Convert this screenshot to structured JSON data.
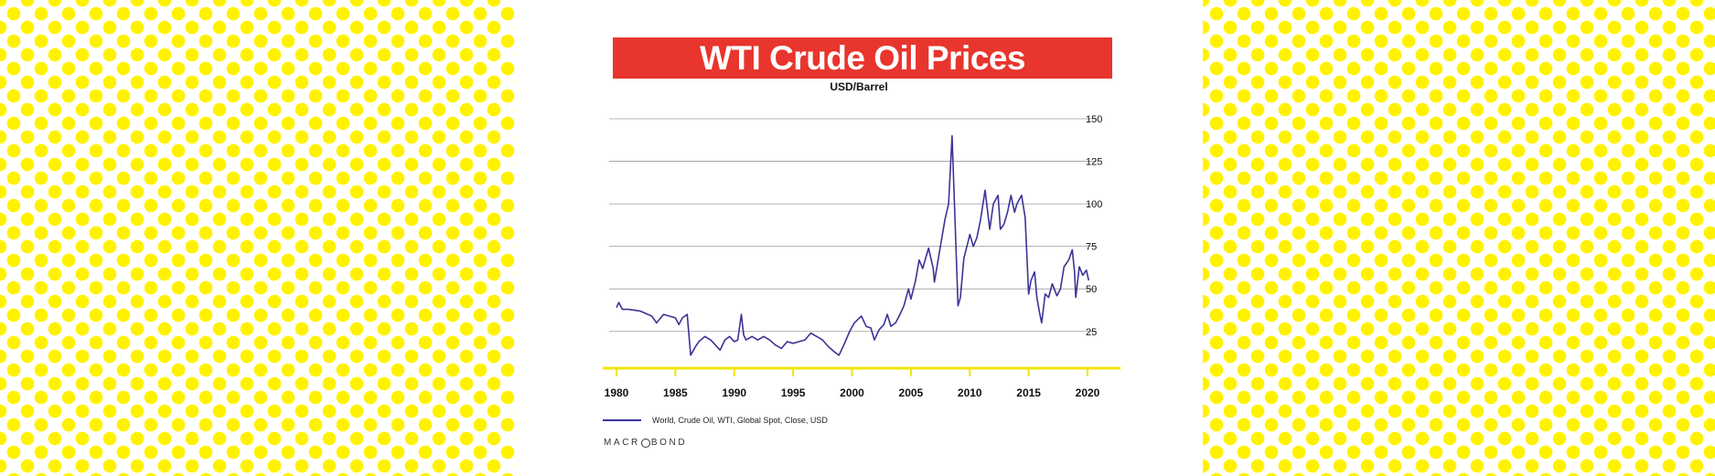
{
  "colors": {
    "dots": "#fff200",
    "banner": "#e8352d",
    "series": "#3b3497",
    "baseline": "#f2e600",
    "grid": "#9a9a9a"
  },
  "chart_data": {
    "type": "line",
    "title": "WTI Crude Oil Prices",
    "subtitle": "USD/Barrel",
    "xlim": [
      1980,
      2020
    ],
    "ylim": [
      5,
      150
    ],
    "x_ticks": [
      "1980",
      "1985",
      "1990",
      "1995",
      "2000",
      "2005",
      "2010",
      "2015",
      "2020"
    ],
    "y_ticks": [
      "25",
      "50",
      "75",
      "100",
      "125",
      "150"
    ],
    "y_axis_side": "right",
    "grid": true,
    "legend_position": "bottom-left",
    "series": [
      {
        "name": "World, Crude Oil, WTI, Global Spot, Close, USD",
        "points": [
          [
            1980.0,
            39
          ],
          [
            1980.2,
            42
          ],
          [
            1980.5,
            38
          ],
          [
            1981.0,
            38
          ],
          [
            1982.0,
            37
          ],
          [
            1983.0,
            34
          ],
          [
            1983.4,
            30
          ],
          [
            1984.0,
            35
          ],
          [
            1985.0,
            33
          ],
          [
            1985.3,
            29
          ],
          [
            1985.6,
            33
          ],
          [
            1986.0,
            35
          ],
          [
            1986.3,
            11
          ],
          [
            1986.7,
            16
          ],
          [
            1987.0,
            19
          ],
          [
            1987.5,
            22
          ],
          [
            1988.0,
            20
          ],
          [
            1988.4,
            17
          ],
          [
            1988.8,
            14
          ],
          [
            1989.2,
            20
          ],
          [
            1989.6,
            22
          ],
          [
            1990.0,
            19
          ],
          [
            1990.3,
            20
          ],
          [
            1990.6,
            35
          ],
          [
            1990.8,
            23
          ],
          [
            1991.0,
            20
          ],
          [
            1991.5,
            22
          ],
          [
            1992.0,
            20
          ],
          [
            1992.5,
            22
          ],
          [
            1993.0,
            20
          ],
          [
            1993.5,
            17
          ],
          [
            1994.0,
            15
          ],
          [
            1994.5,
            19
          ],
          [
            1995.0,
            18
          ],
          [
            1995.5,
            19
          ],
          [
            1996.0,
            20
          ],
          [
            1996.5,
            24
          ],
          [
            1997.0,
            22
          ],
          [
            1997.5,
            20
          ],
          [
            1998.0,
            16
          ],
          [
            1998.5,
            13
          ],
          [
            1998.9,
            11
          ],
          [
            1999.3,
            17
          ],
          [
            1999.8,
            25
          ],
          [
            2000.2,
            30
          ],
          [
            2000.5,
            32
          ],
          [
            2000.8,
            34
          ],
          [
            2001.2,
            28
          ],
          [
            2001.6,
            27
          ],
          [
            2001.9,
            20
          ],
          [
            2002.3,
            26
          ],
          [
            2002.7,
            29
          ],
          [
            2003.0,
            35
          ],
          [
            2003.3,
            28
          ],
          [
            2003.7,
            30
          ],
          [
            2004.0,
            34
          ],
          [
            2004.4,
            40
          ],
          [
            2004.8,
            50
          ],
          [
            2005.0,
            44
          ],
          [
            2005.4,
            55
          ],
          [
            2005.7,
            67
          ],
          [
            2006.0,
            62
          ],
          [
            2006.5,
            74
          ],
          [
            2006.9,
            62
          ],
          [
            2007.0,
            54
          ],
          [
            2007.5,
            75
          ],
          [
            2007.9,
            91
          ],
          [
            2008.2,
            100
          ],
          [
            2008.5,
            140
          ],
          [
            2008.7,
            100
          ],
          [
            2008.9,
            60
          ],
          [
            2009.0,
            40
          ],
          [
            2009.2,
            45
          ],
          [
            2009.5,
            68
          ],
          [
            2009.9,
            79
          ],
          [
            2010.0,
            82
          ],
          [
            2010.3,
            75
          ],
          [
            2010.6,
            80
          ],
          [
            2010.9,
            90
          ],
          [
            2011.3,
            108
          ],
          [
            2011.7,
            85
          ],
          [
            2012.0,
            100
          ],
          [
            2012.4,
            105
          ],
          [
            2012.6,
            85
          ],
          [
            2012.9,
            88
          ],
          [
            2013.2,
            95
          ],
          [
            2013.5,
            105
          ],
          [
            2013.8,
            95
          ],
          [
            2014.0,
            100
          ],
          [
            2014.4,
            105
          ],
          [
            2014.7,
            92
          ],
          [
            2015.0,
            47
          ],
          [
            2015.2,
            55
          ],
          [
            2015.5,
            60
          ],
          [
            2015.7,
            45
          ],
          [
            2015.9,
            37
          ],
          [
            2016.1,
            30
          ],
          [
            2016.4,
            47
          ],
          [
            2016.7,
            45
          ],
          [
            2017.0,
            53
          ],
          [
            2017.4,
            46
          ],
          [
            2017.7,
            50
          ],
          [
            2018.0,
            63
          ],
          [
            2018.4,
            67
          ],
          [
            2018.7,
            73
          ],
          [
            2018.9,
            60
          ],
          [
            2019.0,
            45
          ],
          [
            2019.3,
            63
          ],
          [
            2019.6,
            58
          ],
          [
            2019.9,
            61
          ],
          [
            2020.1,
            55
          ]
        ]
      }
    ]
  },
  "legend": {
    "label": "World, Crude Oil, WTI, Global Spot, Close, USD"
  },
  "brand": {
    "left": "MACR",
    "right": "BOND"
  }
}
